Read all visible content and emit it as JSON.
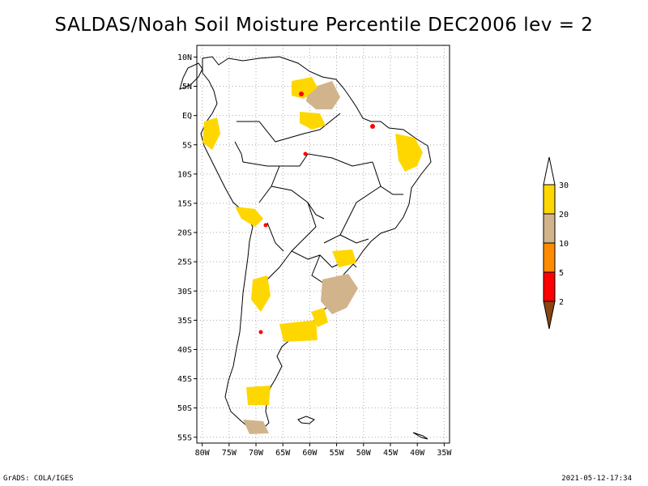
{
  "title": "SALDAS/Noah Soil Moisture Percentile DEC2006 lev = 2",
  "footer": {
    "left": "GrADS: COLA/IGES",
    "right": "2021-05-12-17:34"
  },
  "map": {
    "lat_ticks": [
      "10N",
      "5N",
      "EQ",
      "5S",
      "10S",
      "15S",
      "20S",
      "25S",
      "30S",
      "35S",
      "40S",
      "45S",
      "50S",
      "55S"
    ],
    "lon_ticks": [
      "80W",
      "75W",
      "70W",
      "65W",
      "60W",
      "55W",
      "50W",
      "45W",
      "40W",
      "35W"
    ],
    "lat_range": [
      -56,
      12
    ],
    "lon_range": [
      -81,
      -34
    ],
    "grid": true
  },
  "legend": {
    "levels": [
      "2",
      "5",
      "10",
      "20",
      "30"
    ],
    "colors": {
      "below_2": "#8b4513",
      "2_5": "#ff0000",
      "5_10": "#ff8c00",
      "10_20": "#d2b48c",
      "20_30": "#ffd700",
      "above_30": "#ffffff"
    }
  }
}
